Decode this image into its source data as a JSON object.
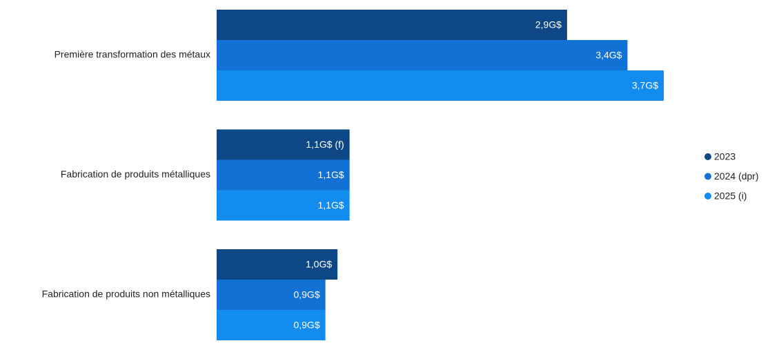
{
  "chart_data": {
    "type": "bar",
    "orientation": "horizontal",
    "categories": [
      "Première transformation des métaux",
      "Fabrication de produits métalliques",
      "Fabrication de produits non métalliques"
    ],
    "series": [
      {
        "name": "2023",
        "color": "#0d4785",
        "values": [
          2.9,
          1.1,
          1.0
        ],
        "value_labels": [
          "2,9G$",
          "1,1G$ (f)",
          "1,0G$"
        ]
      },
      {
        "name": "2024 (dpr)",
        "color": "#1271d5",
        "values": [
          3.4,
          1.1,
          0.9
        ],
        "value_labels": [
          "3,4G$",
          "1,1G$",
          "0,9G$"
        ]
      },
      {
        "name": "2025 (i)",
        "color": "#128cee",
        "values": [
          3.7,
          1.1,
          0.9
        ],
        "value_labels": [
          "3,7G$",
          "1,1G$",
          "0,9G$"
        ]
      }
    ],
    "legend": "right"
  }
}
